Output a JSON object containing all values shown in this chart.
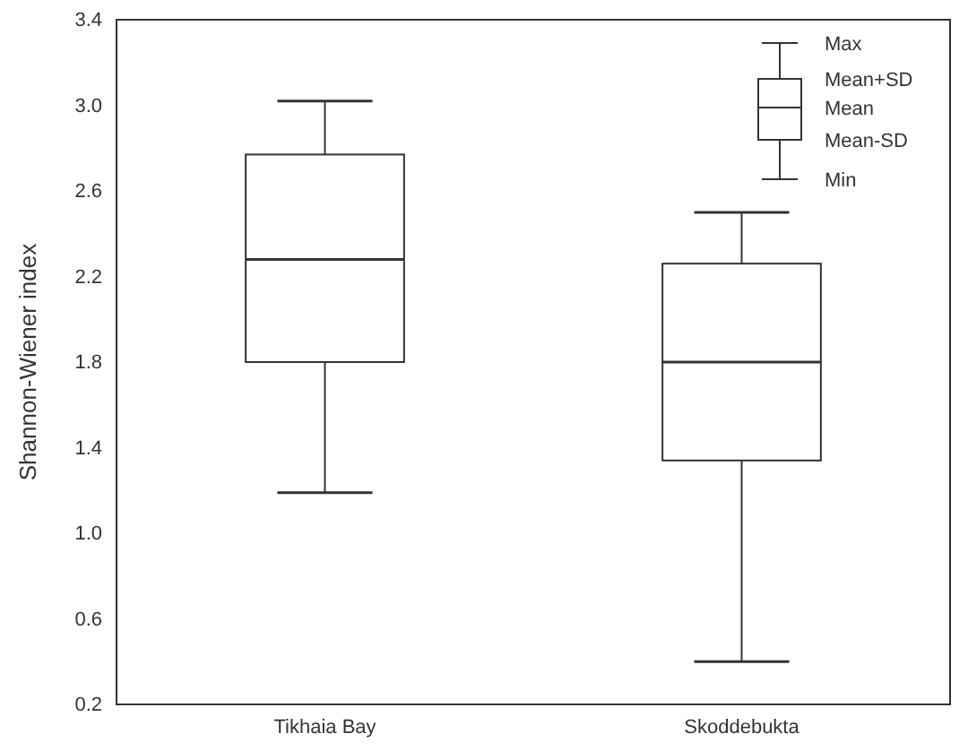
{
  "chart_data": {
    "type": "box",
    "ylabel": "Shannon-Wiener index",
    "categories": [
      "Tikhaia Bay",
      "Skoddebukta"
    ],
    "boxes": [
      {
        "low": 1.19,
        "q1": 1.8,
        "median": 2.28,
        "q3": 2.77,
        "high": 3.02
      },
      {
        "low": 0.4,
        "q1": 1.34,
        "median": 1.8,
        "q3": 2.26,
        "high": 2.5
      }
    ],
    "ylim": [
      0.2,
      3.4
    ],
    "yticks": [
      {
        "value": 0.2,
        "label": "0.2"
      },
      {
        "value": 0.6,
        "label": "0.6"
      },
      {
        "value": 1.0,
        "label": "1.0"
      },
      {
        "value": 1.4,
        "label": "1.4"
      },
      {
        "value": 1.8,
        "label": "1.8"
      },
      {
        "value": 2.2,
        "label": "2.2"
      },
      {
        "value": 2.6,
        "label": "2.6"
      },
      {
        "value": 3.0,
        "label": "3.0"
      },
      {
        "value": 3.4,
        "label": "3.4"
      }
    ],
    "annotations": [
      "Max",
      "Mean+SD",
      "Mean",
      "Mean-SD",
      "Min"
    ]
  }
}
